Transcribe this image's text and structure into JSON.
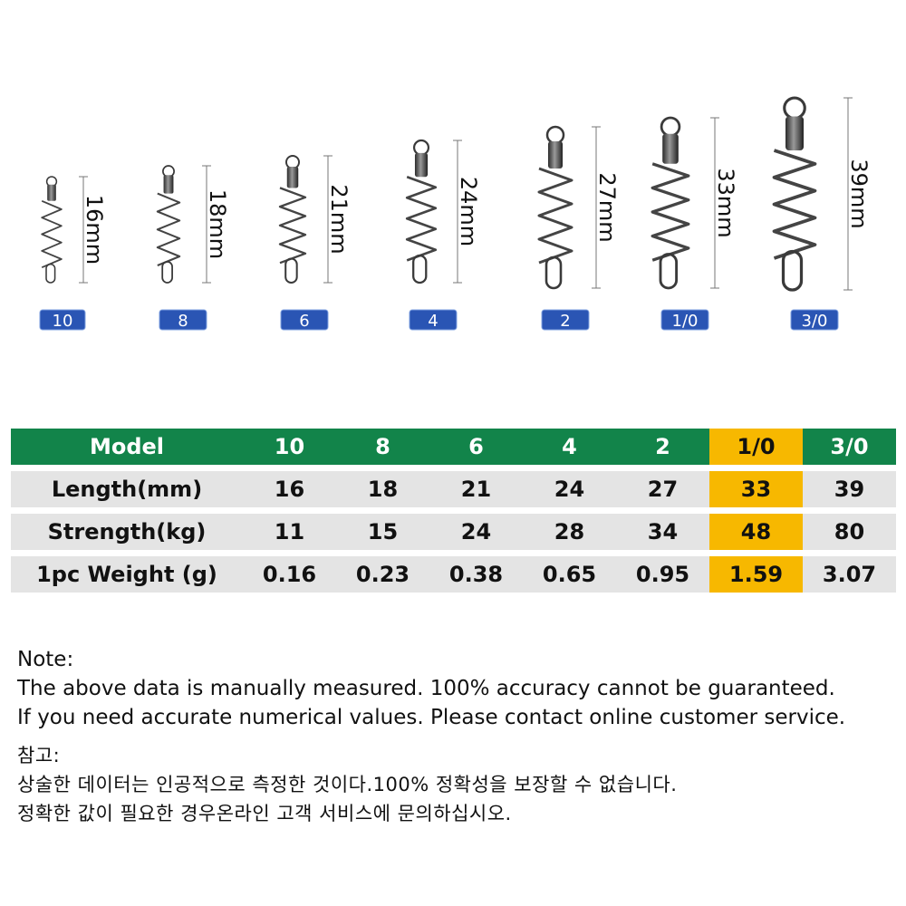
{
  "products": [
    {
      "badge": "10",
      "dim": "16mm"
    },
    {
      "badge": "8",
      "dim": "18mm"
    },
    {
      "badge": "6",
      "dim": "21mm"
    },
    {
      "badge": "4",
      "dim": "24mm"
    },
    {
      "badge": "2",
      "dim": "27mm"
    },
    {
      "badge": "1/0",
      "dim": "33mm"
    },
    {
      "badge": "3/0",
      "dim": "39mm"
    }
  ],
  "table": {
    "header": [
      "Model",
      "10",
      "8",
      "6",
      "4",
      "2",
      "1/0",
      "3/0"
    ],
    "rows": [
      [
        "Length(mm)",
        "16",
        "18",
        "21",
        "24",
        "27",
        "33",
        "39"
      ],
      [
        "Strength(kg)",
        "11",
        "15",
        "24",
        "28",
        "34",
        "48",
        "80"
      ],
      [
        "1pc Weight (g)",
        "0.16",
        "0.23",
        "0.38",
        "0.65",
        "0.95",
        "1.59",
        "3.07"
      ]
    ]
  },
  "colors": {
    "header_bg": "#12844a",
    "row_bg": "#e4e4e4",
    "highlight": "#f7b800",
    "badge_bg": "#2a55b4"
  },
  "notes": {
    "en_title": "Note:",
    "en_line1": "The above data is manually measured. 100% accuracy cannot be guaranteed.",
    "en_line2": "If you need accurate numerical values. Please contact online customer service.",
    "kr_title": "참고:",
    "kr_line1": "상술한 데이터는 인공적으로 측정한 것이다.100% 정확성을 보장할 수 없습니다.",
    "kr_line2": "정확한 값이 필요한 경우온라인 고객 서비스에 문의하십시오."
  }
}
